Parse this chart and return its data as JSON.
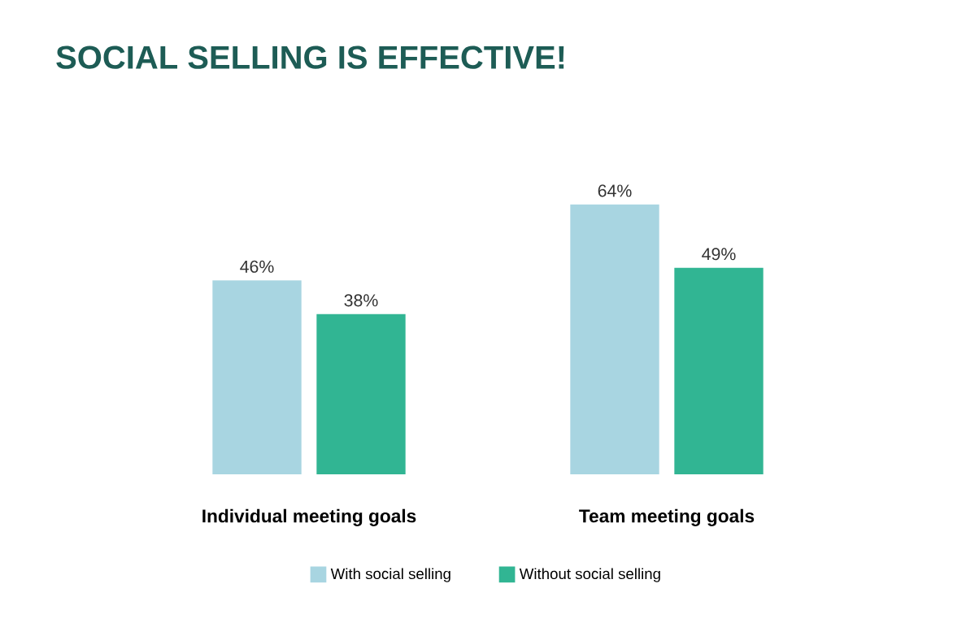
{
  "chart_data": {
    "type": "bar",
    "title": "SOCIAL SELLING IS EFFECTIVE!",
    "categories": [
      "Individual meeting goals",
      "Team meeting goals"
    ],
    "series": [
      {
        "name": "With social selling",
        "color": "#a8d5e1",
        "values": [
          46,
          64
        ],
        "value_labels": [
          "46%",
          "64%"
        ]
      },
      {
        "name": "Without social selling",
        "color": "#31b593",
        "values": [
          38,
          49
        ],
        "value_labels": [
          "38%",
          "49%"
        ]
      }
    ],
    "legend": "bottom"
  }
}
